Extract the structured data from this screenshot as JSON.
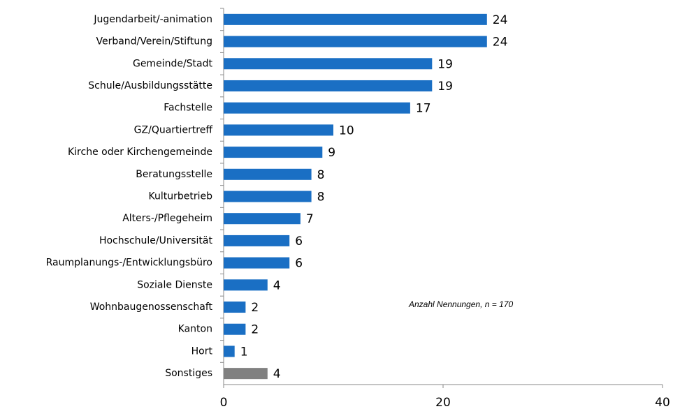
{
  "chart_data": {
    "type": "hbar",
    "categories": [
      "Jugendarbeit/-animation",
      "Verband/Verein/Stiftung",
      "Gemeinde/Stadt",
      "Schule/Ausbildungsstätte",
      "Fachstelle",
      "GZ/Quartiertreff",
      "Kirche oder Kirchengemeinde",
      "Beratungsstelle",
      "Kulturbetrieb",
      "Alters-/Pflegeheim",
      "Hochschule/Universität",
      "Raumplanungs-/Entwicklungsbüro",
      "Soziale Dienste",
      "Wohnbaugenossenschaft",
      "Kanton",
      "Hort",
      "Sonstiges"
    ],
    "values": [
      24,
      24,
      19,
      19,
      17,
      10,
      9,
      8,
      8,
      7,
      6,
      6,
      4,
      2,
      2,
      1,
      4
    ],
    "colors": [
      "#1a6fc4",
      "#1a6fc4",
      "#1a6fc4",
      "#1a6fc4",
      "#1a6fc4",
      "#1a6fc4",
      "#1a6fc4",
      "#1a6fc4",
      "#1a6fc4",
      "#1a6fc4",
      "#1a6fc4",
      "#1a6fc4",
      "#1a6fc4",
      "#1a6fc4",
      "#1a6fc4",
      "#1a6fc4",
      "#808080"
    ],
    "xlim": [
      0,
      40
    ],
    "xticks": [
      0,
      20,
      40
    ],
    "annotation": "Anzahl Nennungen, n = 170"
  }
}
